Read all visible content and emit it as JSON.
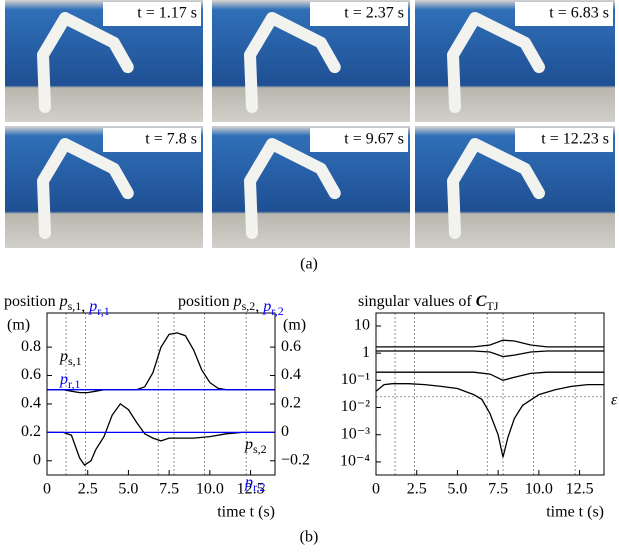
{
  "figure": {
    "panel_a": {
      "label": "(a)",
      "photos": [
        "t = 1.17 s",
        "t = 2.37 s",
        "t = 6.83 s",
        "t = 7.8 s",
        "t = 9.67 s",
        "t = 12.23 s"
      ]
    },
    "panel_b_label": "(b)"
  },
  "chart_data": [
    {
      "type": "line",
      "title_parts": [
        {
          "text": "position "
        },
        {
          "text": "p",
          "sub": "s,1",
          "italic": true
        },
        {
          "text": ", "
        },
        {
          "text": "p",
          "sub": "r,1",
          "italic": true,
          "color": "#0000ff"
        }
      ],
      "title2_parts": [
        {
          "text": "position "
        },
        {
          "text": "p",
          "sub": "s,2",
          "italic": true
        },
        {
          "text": ", "
        },
        {
          "text": "p",
          "sub": "r,2",
          "italic": true,
          "color": "#0000ff"
        }
      ],
      "ylabel": "(m)",
      "y2label": "(m)",
      "xlabel": "time t (s)",
      "xlim": [
        0,
        14
      ],
      "xticks": [
        0,
        2.5,
        {
          "value": 5,
          "label": "5.0"
        },
        7.5,
        {
          "value": 10,
          "label": "10.0"
        },
        12.5
      ],
      "ylim": [
        -0.1,
        1.04
      ],
      "yticks": [
        0,
        0.2,
        0.4,
        0.6,
        0.8
      ],
      "y2lim": [
        -0.3,
        0.84
      ],
      "y2ticks": [
        {
          "value": -0.2,
          "label": "−0.2"
        },
        0,
        0.2,
        0.4,
        0.6
      ],
      "event_lines": [
        1.17,
        2.37,
        6.83,
        7.8,
        9.67,
        12.23
      ],
      "series": [
        {
          "name": "p",
          "name_sub": "s,1",
          "color": "#000000",
          "x": [
            0,
            1,
            1.5,
            2,
            2.5,
            3,
            3.5,
            4,
            5,
            5.5,
            6,
            6.5,
            7,
            7.5,
            8,
            8.5,
            9,
            9.5,
            10,
            10.5,
            11,
            12,
            13,
            14
          ],
          "values": [
            0.5,
            0.5,
            0.49,
            0.48,
            0.48,
            0.49,
            0.5,
            0.5,
            0.5,
            0.5,
            0.52,
            0.62,
            0.8,
            0.89,
            0.9,
            0.88,
            0.78,
            0.64,
            0.55,
            0.51,
            0.5,
            0.5,
            0.5,
            0.5
          ]
        },
        {
          "name": "p",
          "name_sub": "r,1",
          "color": "#0000ff",
          "x": [
            0,
            14
          ],
          "values": [
            0.5,
            0.5
          ]
        },
        {
          "name": "p",
          "name_sub": "s,2",
          "color": "#000000",
          "axis": "y2",
          "x": [
            0,
            1,
            1.5,
            2,
            2.3,
            2.7,
            3,
            3.5,
            4,
            4.5,
            5,
            5.5,
            6,
            6.5,
            7,
            7.5,
            8,
            9,
            10,
            11,
            12,
            13,
            14
          ],
          "values": [
            0,
            0,
            -0.02,
            -0.18,
            -0.23,
            -0.2,
            -0.12,
            -0.03,
            0.12,
            0.2,
            0.16,
            0.07,
            -0.01,
            -0.04,
            -0.06,
            -0.04,
            -0.04,
            -0.04,
            -0.03,
            -0.01,
            0,
            0,
            0
          ]
        },
        {
          "name": "p",
          "name_sub": "r,2",
          "color": "#0000ff",
          "axis": "y2",
          "x": [
            0,
            14
          ],
          "values": [
            0,
            0
          ]
        }
      ]
    },
    {
      "type": "line",
      "log_y": true,
      "title_parts": [
        {
          "text": "singular values of "
        },
        {
          "text": "C",
          "sub": "TJ",
          "italic": true,
          "bold": true
        }
      ],
      "xlabel": "time t (s)",
      "xlim": [
        0,
        14
      ],
      "xticks": [
        0,
        2.5,
        {
          "value": 5,
          "label": "5.0"
        },
        7.5,
        {
          "value": 10,
          "label": "10.0"
        },
        12.5
      ],
      "ylim": [
        3.3e-05,
        30
      ],
      "yticks": [
        {
          "value": 0.0001,
          "label": "10⁻⁴"
        },
        {
          "value": 0.001,
          "label": "10⁻³"
        },
        {
          "value": 0.01,
          "label": "10⁻²"
        },
        {
          "value": 0.1,
          "label": "10⁻¹"
        },
        1,
        10
      ],
      "event_lines": [
        1.17,
        2.37,
        6.83,
        7.8,
        9.67,
        12.23
      ],
      "threshold": {
        "value": 0.025,
        "label": "ε"
      },
      "series": [
        {
          "color": "#000000",
          "x": [
            0,
            6,
            7,
            7.8,
            8.5,
            9.5,
            10.5,
            14
          ],
          "values": [
            1.7,
            1.7,
            2.0,
            3.0,
            2.8,
            2.0,
            1.7,
            1.7
          ]
        },
        {
          "color": "#000000",
          "x": [
            0,
            6,
            7,
            7.8,
            8.5,
            9.5,
            10.5,
            14
          ],
          "values": [
            1.2,
            1.2,
            1.1,
            0.75,
            0.85,
            1.1,
            1.2,
            1.2
          ]
        },
        {
          "color": "#000000",
          "x": [
            0,
            6,
            7,
            7.8,
            8.5,
            9.5,
            10.5,
            14
          ],
          "values": [
            0.2,
            0.2,
            0.17,
            0.1,
            0.13,
            0.18,
            0.2,
            0.2
          ]
        },
        {
          "color": "#000000",
          "x": [
            0,
            0.5,
            1,
            2,
            3,
            4,
            5,
            6,
            6.5,
            7,
            7.5,
            7.8,
            8.1,
            8.5,
            9,
            10,
            11,
            12,
            13,
            14
          ],
          "values": [
            0.04,
            0.07,
            0.075,
            0.075,
            0.07,
            0.06,
            0.05,
            0.03,
            0.02,
            0.006,
            0.001,
            0.00015,
            0.0008,
            0.004,
            0.012,
            0.03,
            0.045,
            0.06,
            0.07,
            0.07
          ]
        }
      ]
    }
  ]
}
